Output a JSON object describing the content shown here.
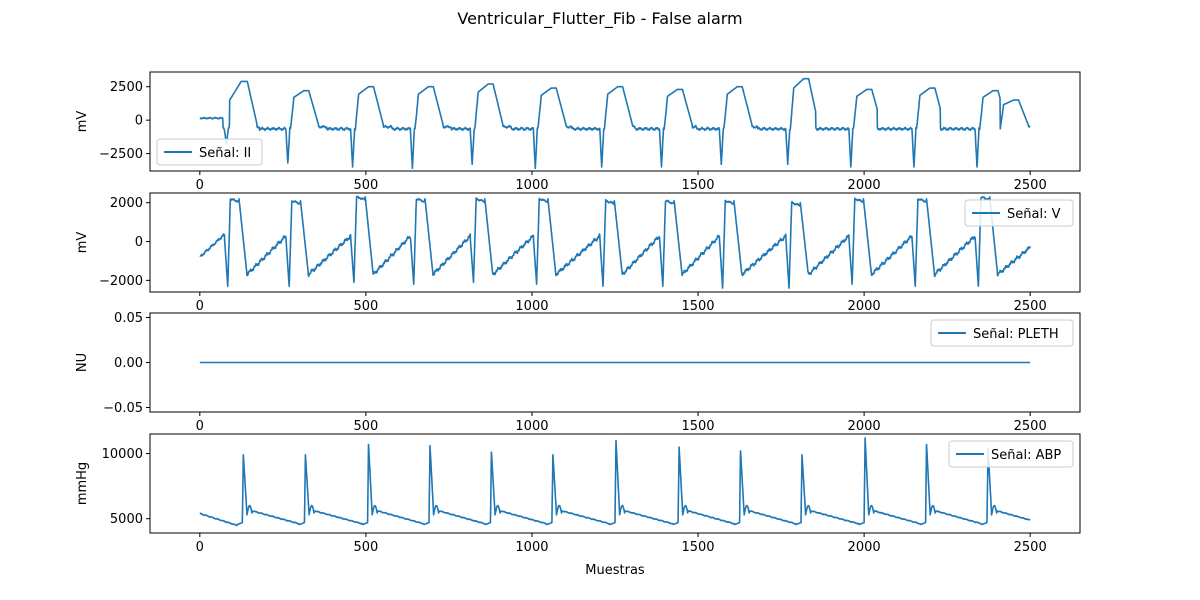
{
  "figure": {
    "title": "Ventricular_Flutter_Fib - False alarm",
    "xlabel": "Muestras"
  },
  "chart_data": [
    {
      "type": "line",
      "series": [
        {
          "name": "Señal: II",
          "color": "#1f77b4"
        }
      ],
      "ylabel": "mV",
      "xlim": [
        -150,
        2650
      ],
      "ylim": [
        -3800,
        3600
      ],
      "xticks": [
        0,
        500,
        1000,
        1500,
        2000,
        2500
      ],
      "yticks": [
        -2500,
        0,
        2500
      ],
      "ytick_labels": [
        "−2500",
        "0",
        "2500"
      ],
      "legend": "lower-left",
      "waveform": {
        "kind": "ecg_lead_ii",
        "beats": [
          0,
          180,
          390,
          580,
          760,
          945,
          1120,
          1310,
          1495,
          1680,
          1855,
          2040,
          2230,
          2410
        ],
        "drop_sample": [
          80,
          265,
          460,
          640,
          820,
          1010,
          1210,
          1390,
          1570,
          1770,
          1960,
          2150,
          2340
        ],
        "peak_values": [
          2900,
          2200,
          2500,
          2500,
          2700,
          2400,
          2500,
          2300,
          2500,
          3100,
          2300,
          2400,
          2200,
          1500
        ],
        "trough_values": [
          -1800,
          -3200,
          -3500,
          -3600,
          -3300,
          -3600,
          -3500,
          -3500,
          -3300,
          -3300,
          -3500,
          -3500,
          -3500,
          -3600
        ]
      }
    },
    {
      "type": "line",
      "series": [
        {
          "name": "Señal: V",
          "color": "#1f77b4"
        }
      ],
      "ylabel": "mV",
      "xlim": [
        -150,
        2650
      ],
      "ylim": [
        -2600,
        2500
      ],
      "xticks": [
        0,
        500,
        1000,
        1500,
        2000,
        2500
      ],
      "yticks": [
        -2000,
        0,
        2000
      ],
      "ytick_labels": [
        "−2000",
        "0",
        "2000"
      ],
      "legend": "upper-right",
      "waveform": {
        "kind": "ecg_lead_v",
        "beats": [
          80,
          265,
          460,
          640,
          820,
          1010,
          1210,
          1390,
          1570,
          1770,
          1960,
          2150,
          2340
        ],
        "peak_values": [
          2200,
          2100,
          2300,
          2200,
          2200,
          2200,
          2100,
          2100,
          2100,
          2000,
          2200,
          2200,
          2300
        ],
        "trough_values": [
          -2300,
          -2300,
          -2100,
          -2200,
          -2100,
          -2200,
          -2300,
          -2300,
          -2400,
          -2400,
          -2200,
          -2300,
          -2300
        ]
      }
    },
    {
      "type": "line",
      "series": [
        {
          "name": "Señal: PLETH",
          "color": "#1f77b4"
        }
      ],
      "ylabel": "NU",
      "xlim": [
        -150,
        2650
      ],
      "ylim": [
        -0.055,
        0.055
      ],
      "xticks": [
        0,
        500,
        1000,
        1500,
        2000,
        2500
      ],
      "yticks": [
        -0.05,
        0,
        0.05
      ],
      "ytick_labels": [
        "−0.05",
        "0.00",
        "0.05"
      ],
      "legend": "upper-right",
      "waveform": {
        "kind": "flat",
        "value": 0.0
      }
    },
    {
      "type": "line",
      "series": [
        {
          "name": "Señal: ABP",
          "color": "#1f77b4"
        }
      ],
      "ylabel": "mmHg",
      "xlim": [
        -150,
        2650
      ],
      "ylim": [
        3900,
        11500
      ],
      "xticks": [
        0,
        500,
        1000,
        1500,
        2000,
        2500
      ],
      "yticks": [
        5000,
        10000
      ],
      "ytick_labels": [
        "5000",
        "10000"
      ],
      "legend": "upper-right",
      "waveform": {
        "kind": "arterial_pressure",
        "baseline": 5000,
        "beats": [
          128,
          315,
          505,
          690,
          875,
          1060,
          1250,
          1440,
          1625,
          1810,
          2000,
          2185,
          2370
        ],
        "peak_values": [
          9900,
          9900,
          10700,
          10600,
          10100,
          9900,
          11000,
          10500,
          10200,
          9900,
          11200,
          10700,
          10400
        ]
      }
    }
  ]
}
